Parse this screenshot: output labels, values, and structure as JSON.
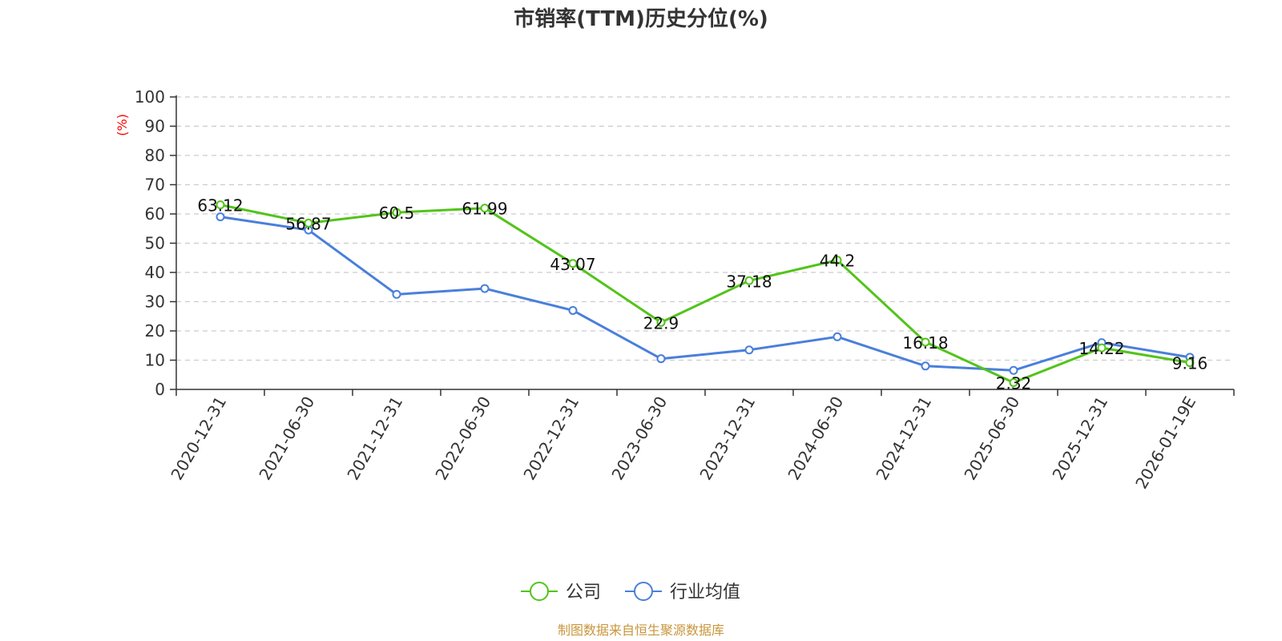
{
  "chart_data": {
    "type": "line",
    "title": "市销率(TTM)历史分位(%)",
    "ylabel": "(%)",
    "ylim": [
      0,
      100
    ],
    "yticks": [
      0,
      10,
      20,
      30,
      40,
      50,
      60,
      70,
      80,
      90,
      100
    ],
    "grid": true,
    "legend_position": "bottom-center",
    "categories": [
      "2020-12-31",
      "2021-06-30",
      "2021-12-31",
      "2022-06-30",
      "2022-12-31",
      "2023-06-30",
      "2023-12-31",
      "2024-06-30",
      "2024-12-31",
      "2025-06-30",
      "2025-12-31",
      "2026-01-19E"
    ],
    "series": [
      {
        "name": "公司",
        "color": "#52c41a",
        "show_labels": true,
        "values": [
          63.12,
          56.87,
          60.5,
          61.99,
          43.07,
          22.9,
          37.18,
          44.2,
          16.18,
          2.32,
          14.22,
          9.16
        ],
        "labels": [
          "63.12",
          "56.87",
          "60.5",
          "61.99",
          "43.07",
          "22.9",
          "37.18",
          "44.2",
          "16.18",
          "2.32",
          "14.22",
          "9.16"
        ]
      },
      {
        "name": "行业均值",
        "color": "#4a7fdb",
        "show_labels": false,
        "values": [
          59,
          54.5,
          32.5,
          34.5,
          27,
          10.5,
          13.5,
          18,
          8,
          6.5,
          16,
          11
        ]
      }
    ],
    "source": "制图数据来自恒生聚源数据库",
    "source_color": "#c8963c",
    "unit_color": "#ff0000"
  }
}
